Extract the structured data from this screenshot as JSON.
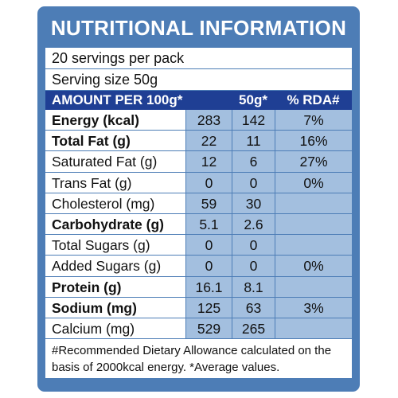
{
  "title": "NUTRITIONAL INFORMATION",
  "servings": "20 servings per pack",
  "serving_size": "Serving size 50g",
  "header": {
    "amount": "AMOUNT PER 100g*",
    "col2": "50g*",
    "col3": "% RDA#"
  },
  "rows": [
    {
      "name": "Energy (kcal)",
      "v100": "283",
      "v50": "142",
      "rda": "7%"
    },
    {
      "name": "Total Fat (g)",
      "v100": "22",
      "v50": "11",
      "rda": "16%"
    },
    {
      "name": "Saturated Fat (g)",
      "v100": "12",
      "v50": "6",
      "rda": "27%"
    },
    {
      "name": "Trans Fat (g)",
      "v100": "0",
      "v50": "0",
      "rda": "0%"
    },
    {
      "name": "Cholesterol (mg)",
      "v100": "59",
      "v50": "30",
      "rda": ""
    },
    {
      "name": "Carbohydrate (g)",
      "v100": "5.1",
      "v50": "2.6",
      "rda": ""
    },
    {
      "name": "Total Sugars (g)",
      "v100": "0",
      "v50": "0",
      "rda": ""
    },
    {
      "name": "Added Sugars (g)",
      "v100": "0",
      "v50": "0",
      "rda": "0%"
    },
    {
      "name": "Protein (g)",
      "v100": "16.1",
      "v50": "8.1",
      "rda": ""
    },
    {
      "name": "Sodium (mg)",
      "v100": "125",
      "v50": "63",
      "rda": "3%"
    },
    {
      "name": "Calcium (mg)",
      "v100": "529",
      "v50": "265",
      "rda": ""
    }
  ],
  "footnote": "#Recommended Dietary Allowance calculated on the basis of 2000kcal energy.  *Average values.",
  "colors": {
    "frame": "#4d7db6",
    "header_bar": "#1f3f94",
    "value_cells": "#a3bfdf"
  }
}
